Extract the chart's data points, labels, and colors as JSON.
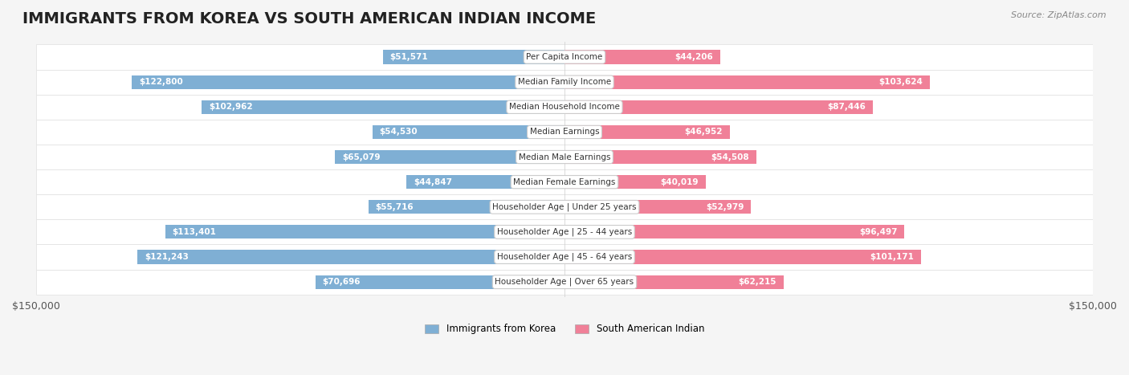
{
  "title": "IMMIGRANTS FROM KOREA VS SOUTH AMERICAN INDIAN INCOME",
  "source": "Source: ZipAtlas.com",
  "categories": [
    "Per Capita Income",
    "Median Family Income",
    "Median Household Income",
    "Median Earnings",
    "Median Male Earnings",
    "Median Female Earnings",
    "Householder Age | Under 25 years",
    "Householder Age | 25 - 44 years",
    "Householder Age | 45 - 64 years",
    "Householder Age | Over 65 years"
  ],
  "korea_values": [
    51571,
    122800,
    102962,
    54530,
    65079,
    44847,
    55716,
    113401,
    121243,
    70696
  ],
  "south_american_values": [
    44206,
    103624,
    87446,
    46952,
    54508,
    40019,
    52979,
    96497,
    101171,
    62215
  ],
  "korea_color": "#7fafd4",
  "south_american_color": "#f08098",
  "korea_label": "Immigrants from Korea",
  "south_american_label": "South American Indian",
  "max_value": 150000,
  "bar_height": 0.55,
  "bg_color": "#f5f5f5",
  "row_bg_color": "#ffffff",
  "title_fontsize": 14,
  "label_fontsize": 8.5,
  "axis_fontsize": 9
}
